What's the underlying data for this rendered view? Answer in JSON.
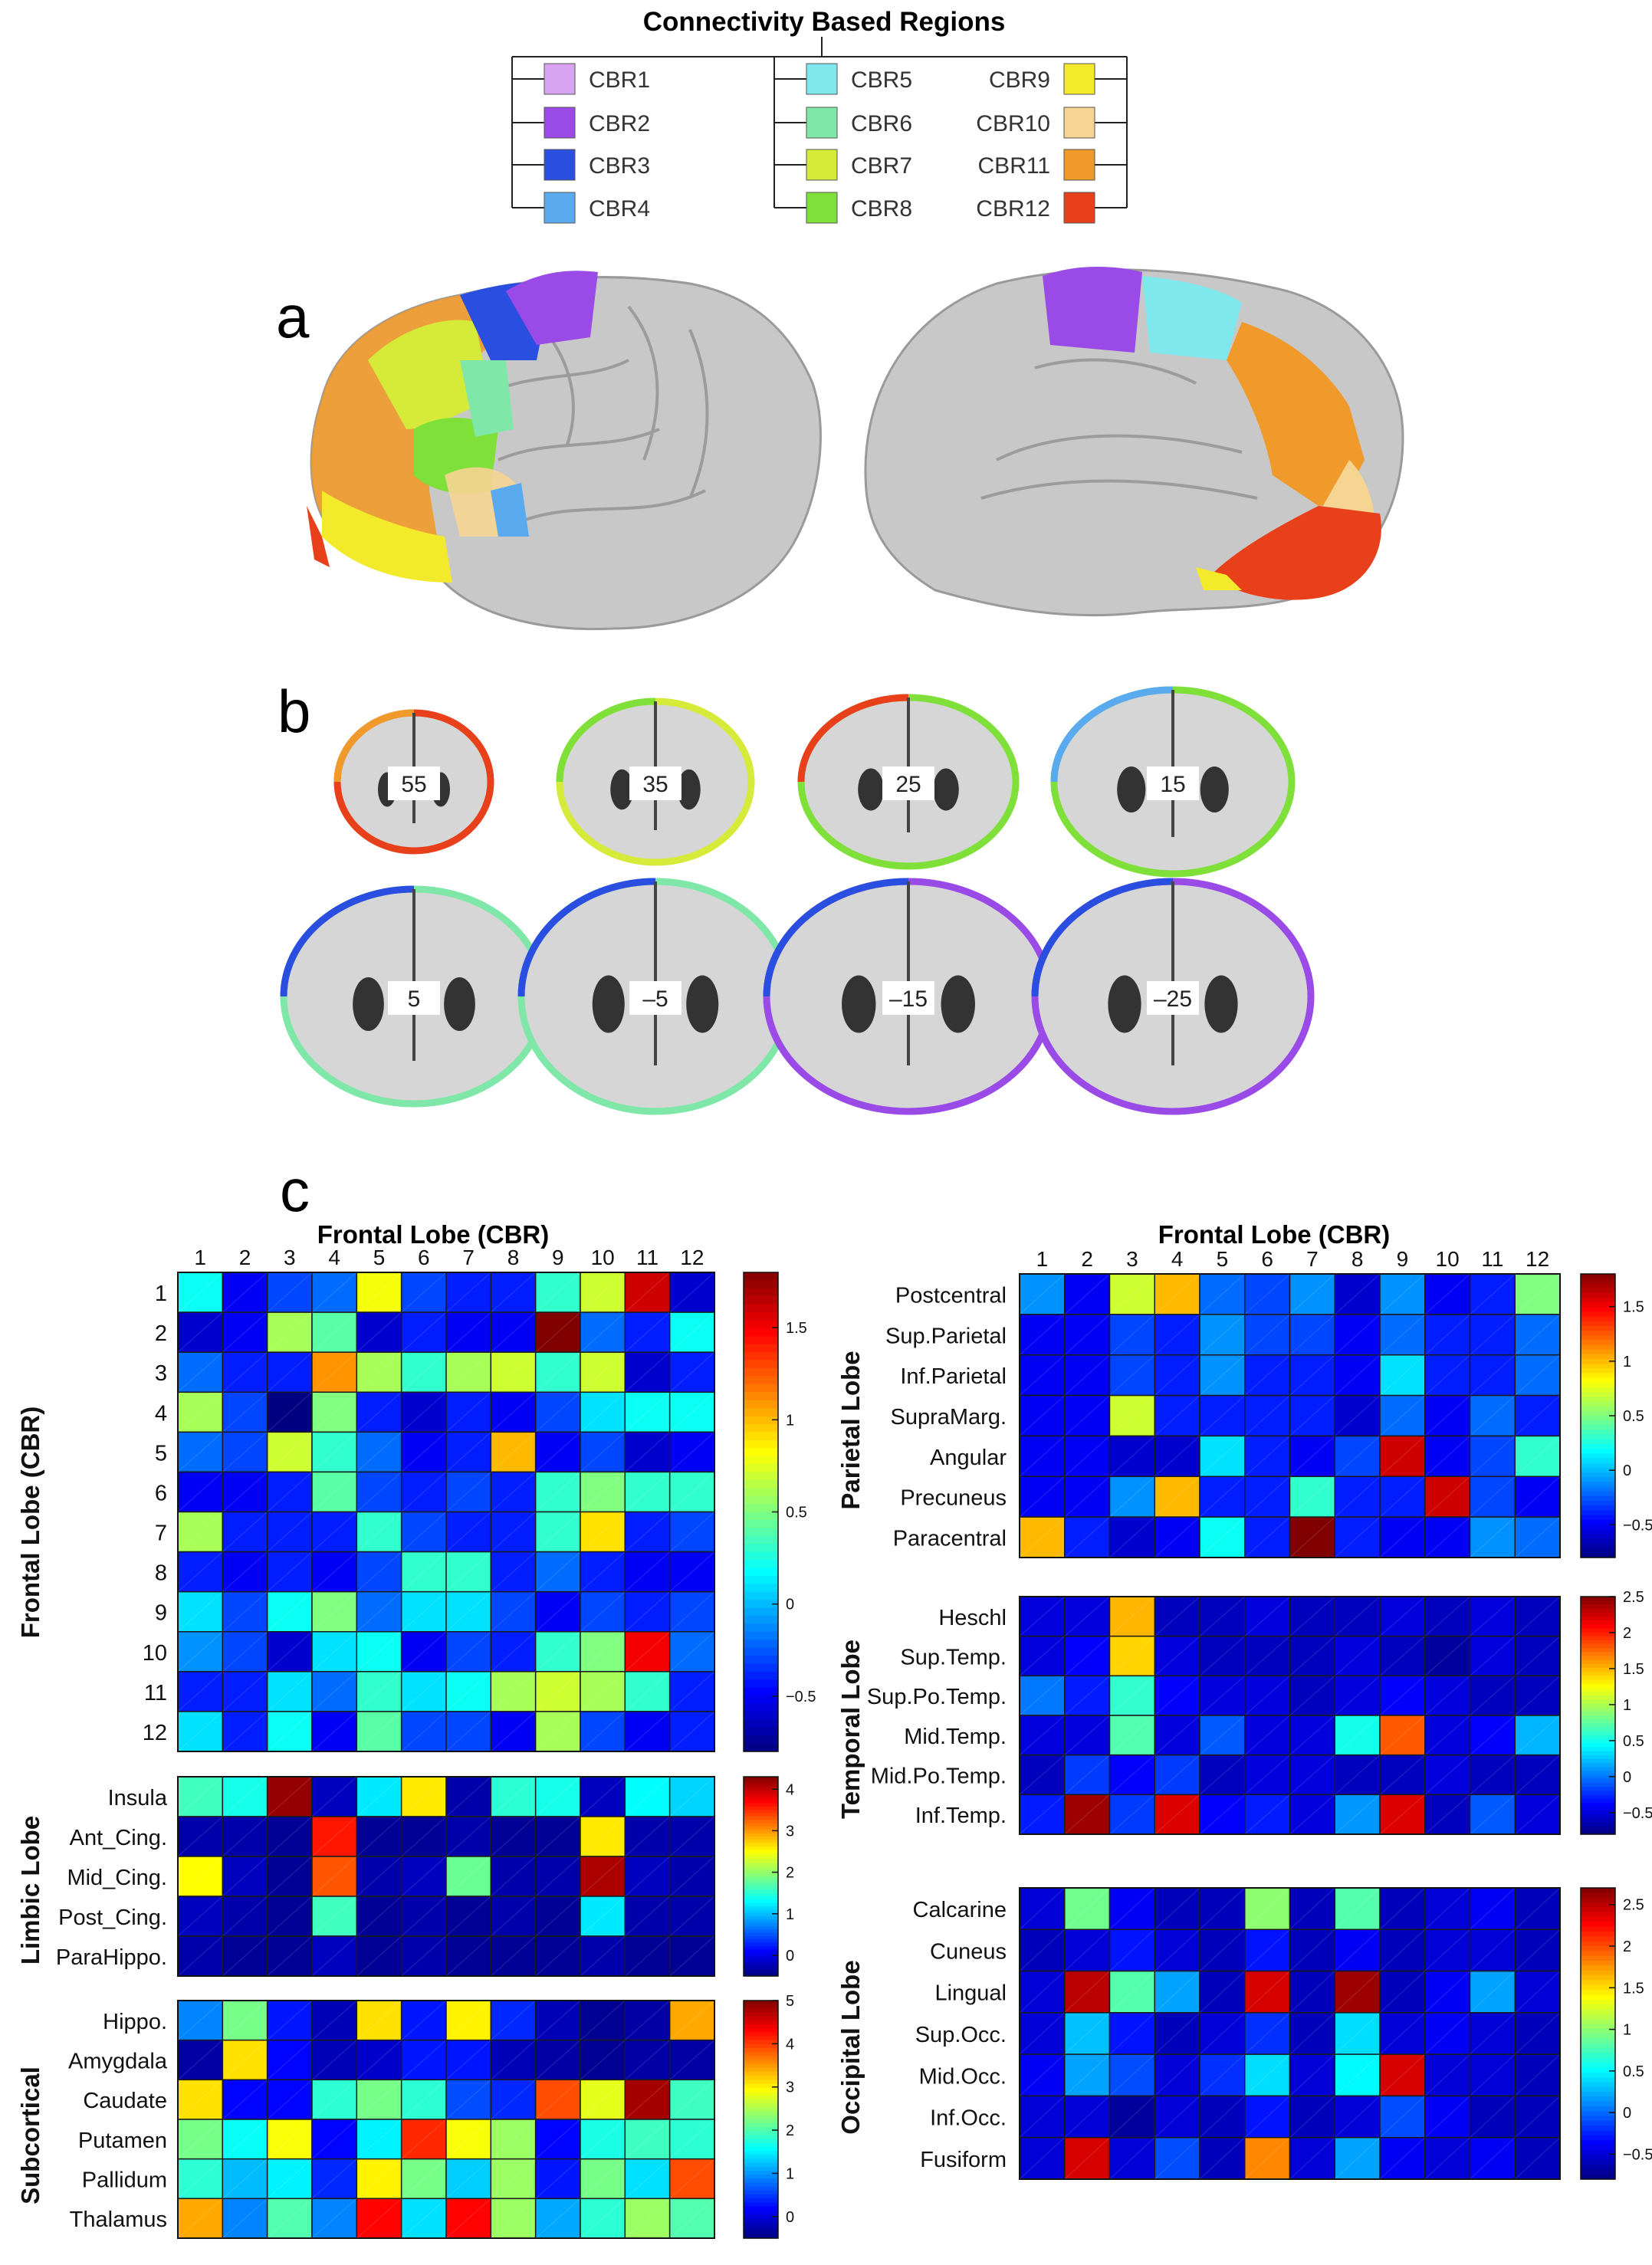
{
  "legend": {
    "title": "Connectivity Based Regions",
    "items": [
      {
        "label": "CBR1",
        "color": "#d8a3f0"
      },
      {
        "label": "CBR2",
        "color": "#9a4ae6"
      },
      {
        "label": "CBR3",
        "color": "#2a4fe0"
      },
      {
        "label": "CBR4",
        "color": "#5aaaf0"
      },
      {
        "label": "CBR5",
        "color": "#7fe8ec"
      },
      {
        "label": "CBR6",
        "color": "#7fe8a8"
      },
      {
        "label": "CBR7",
        "color": "#d6ea3a"
      },
      {
        "label": "CBR8",
        "color": "#7fe03a"
      },
      {
        "label": "CBR9",
        "color": "#f2ea2a"
      },
      {
        "label": "CBR10",
        "color": "#f6d492"
      },
      {
        "label": "CBR11",
        "color": "#ef9a2a"
      },
      {
        "label": "CBR12",
        "color": "#e8401a"
      }
    ]
  },
  "panel_labels": {
    "a": "a",
    "b": "b",
    "c": "c"
  },
  "slices": [
    "55",
    "35",
    "25",
    "15",
    "5",
    "–5",
    "–15",
    "–25"
  ],
  "chart_data": [
    {
      "type": "heatmap",
      "title": "Frontal Lobe (CBR)",
      "ylabel": "Frontal Lobe (CBR)",
      "x": [
        "1",
        "2",
        "3",
        "4",
        "5",
        "6",
        "7",
        "8",
        "9",
        "10",
        "11",
        "12"
      ],
      "y": [
        "1",
        "2",
        "3",
        "4",
        "5",
        "6",
        "7",
        "8",
        "9",
        "10",
        "11",
        "12"
      ],
      "zlim": [
        -0.8,
        1.8
      ],
      "colorbar_ticks": [
        "1.5",
        "1",
        "0.5",
        "0",
        "−0.5"
      ],
      "values": [
        [
          0.2,
          -0.5,
          -0.3,
          -0.2,
          0.8,
          -0.3,
          -0.4,
          -0.4,
          0.3,
          0.7,
          1.6,
          -0.6
        ],
        [
          -0.6,
          -0.5,
          0.6,
          0.4,
          -0.6,
          -0.4,
          -0.5,
          -0.5,
          1.8,
          -0.2,
          -0.4,
          0.2
        ],
        [
          -0.2,
          -0.4,
          -0.4,
          1.1,
          0.6,
          0.3,
          0.6,
          0.7,
          0.3,
          0.7,
          -0.6,
          -0.4
        ],
        [
          0.6,
          -0.3,
          -0.8,
          0.5,
          -0.4,
          -0.6,
          -0.4,
          -0.5,
          -0.3,
          0.1,
          0.2,
          0.2
        ],
        [
          -0.2,
          -0.3,
          0.7,
          0.3,
          -0.2,
          -0.5,
          -0.4,
          1.0,
          -0.5,
          -0.3,
          -0.6,
          -0.5
        ],
        [
          -0.5,
          -0.5,
          -0.4,
          0.4,
          -0.3,
          -0.4,
          -0.3,
          -0.4,
          0.3,
          0.5,
          0.3,
          0.3
        ],
        [
          0.6,
          -0.4,
          -0.4,
          -0.4,
          0.3,
          -0.3,
          -0.4,
          -0.4,
          0.3,
          0.9,
          -0.4,
          -0.3
        ],
        [
          -0.4,
          -0.5,
          -0.4,
          -0.5,
          -0.3,
          0.3,
          0.3,
          -0.4,
          -0.2,
          -0.4,
          -0.5,
          -0.5
        ],
        [
          0.1,
          -0.3,
          0.2,
          0.5,
          -0.2,
          0.1,
          0.1,
          -0.3,
          -0.5,
          -0.3,
          -0.4,
          -0.3
        ],
        [
          -0.1,
          -0.3,
          -0.6,
          0.1,
          0.2,
          -0.5,
          -0.3,
          -0.4,
          0.3,
          0.5,
          1.5,
          -0.2
        ],
        [
          -0.4,
          -0.4,
          0.1,
          -0.2,
          0.3,
          0.1,
          0.2,
          0.6,
          0.7,
          0.6,
          0.3,
          -0.4
        ],
        [
          0.1,
          -0.4,
          0.2,
          -0.5,
          0.4,
          -0.3,
          -0.3,
          -0.5,
          0.6,
          -0.3,
          -0.5,
          -0.4
        ]
      ]
    },
    {
      "type": "heatmap",
      "title": "",
      "ylabel": "Limbic Lobe",
      "x": [
        "1",
        "2",
        "3",
        "4",
        "5",
        "6",
        "7",
        "8",
        "9",
        "10",
        "11",
        "12"
      ],
      "y": [
        "Insula",
        "Ant_Cing.",
        "Mid_Cing.",
        "Post_Cing.",
        "ParaHippo."
      ],
      "zlim": [
        -0.5,
        4.3
      ],
      "colorbar_ticks": [
        "4",
        "3",
        "2",
        "1",
        "0"
      ],
      "values": [
        [
          1.6,
          1.4,
          4.2,
          -0.2,
          1.2,
          2.6,
          -0.3,
          1.5,
          1.4,
          -0.2,
          1.3,
          1.1
        ],
        [
          -0.3,
          -0.3,
          -0.4,
          3.6,
          -0.4,
          -0.4,
          -0.3,
          -0.4,
          -0.4,
          2.6,
          -0.3,
          -0.3
        ],
        [
          2.5,
          -0.2,
          -0.4,
          3.3,
          -0.3,
          -0.2,
          1.8,
          -0.3,
          -0.3,
          4.1,
          -0.2,
          -0.3
        ],
        [
          -0.2,
          -0.3,
          -0.4,
          1.6,
          -0.4,
          -0.3,
          -0.4,
          -0.3,
          -0.4,
          1.2,
          -0.3,
          -0.3
        ],
        [
          -0.3,
          -0.4,
          -0.4,
          -0.2,
          -0.4,
          -0.3,
          -0.4,
          -0.4,
          -0.4,
          -0.3,
          -0.4,
          -0.4
        ]
      ]
    },
    {
      "type": "heatmap",
      "title": "",
      "ylabel": "Subcortical",
      "x": [
        "1",
        "2",
        "3",
        "4",
        "5",
        "6",
        "7",
        "8",
        "9",
        "10",
        "11",
        "12"
      ],
      "y": [
        "Hippo.",
        "Amygdala",
        "Caudate",
        "Putamen",
        "Pallidum",
        "Thalamus"
      ],
      "zlim": [
        -0.5,
        5
      ],
      "colorbar_ticks": [
        "5",
        "4",
        "3",
        "2",
        "1",
        "0"
      ],
      "values": [
        [
          0.9,
          2.2,
          0.3,
          -0.2,
          3.1,
          0.3,
          3.0,
          0.4,
          -0.2,
          -0.4,
          -0.3,
          3.4
        ],
        [
          -0.3,
          3.1,
          0.2,
          -0.2,
          -0.1,
          0.3,
          0.3,
          -0.2,
          -0.3,
          -0.4,
          -0.3,
          -0.3
        ],
        [
          3.1,
          0.2,
          0.2,
          1.8,
          2.2,
          1.8,
          0.6,
          0.4,
          3.9,
          2.8,
          4.8,
          1.9
        ],
        [
          2.2,
          1.6,
          2.9,
          0.2,
          1.5,
          4.1,
          2.9,
          2.4,
          0.2,
          1.7,
          1.9,
          1.8
        ],
        [
          1.8,
          1.2,
          1.5,
          0.4,
          3.0,
          2.2,
          1.3,
          2.4,
          0.3,
          2.2,
          1.4,
          3.9
        ],
        [
          3.4,
          0.9,
          2.0,
          0.9,
          4.3,
          1.4,
          4.3,
          2.4,
          1.1,
          1.8,
          2.4,
          2.0
        ]
      ]
    },
    {
      "type": "heatmap",
      "title": "Frontal Lobe (CBR)",
      "ylabel": "Parietal Lobe",
      "x": [
        "1",
        "2",
        "3",
        "4",
        "5",
        "6",
        "7",
        "8",
        "9",
        "10",
        "11",
        "12"
      ],
      "y": [
        "Postcentral",
        "Sup.Parietal",
        "Inf.Parietal",
        "SupraMarg.",
        "Angular",
        "Precuneus",
        "Paracentral"
      ],
      "zlim": [
        -0.8,
        1.8
      ],
      "colorbar_ticks": [
        "1.5",
        "1",
        "0.5",
        "0",
        "−0.5"
      ],
      "values": [
        [
          -0.1,
          -0.5,
          0.7,
          1.0,
          -0.2,
          -0.3,
          -0.1,
          -0.6,
          -0.1,
          -0.5,
          -0.4,
          0.5
        ],
        [
          -0.5,
          -0.5,
          -0.3,
          -0.4,
          -0.1,
          -0.3,
          -0.3,
          -0.5,
          -0.2,
          -0.4,
          -0.4,
          -0.2
        ],
        [
          -0.5,
          -0.5,
          -0.3,
          -0.4,
          -0.1,
          -0.4,
          -0.4,
          -0.5,
          0.1,
          -0.4,
          -0.4,
          -0.2
        ],
        [
          -0.5,
          -0.5,
          0.7,
          -0.4,
          -0.4,
          -0.4,
          -0.4,
          -0.6,
          -0.2,
          -0.5,
          -0.2,
          -0.4
        ],
        [
          -0.5,
          -0.5,
          -0.6,
          -0.6,
          0.1,
          -0.4,
          -0.5,
          -0.3,
          1.6,
          -0.5,
          -0.3,
          0.3
        ],
        [
          -0.5,
          -0.5,
          -0.1,
          1.0,
          -0.4,
          -0.4,
          0.3,
          -0.4,
          -0.4,
          1.6,
          -0.3,
          -0.5
        ],
        [
          1.0,
          -0.4,
          -0.6,
          -0.5,
          0.2,
          -0.4,
          1.8,
          -0.4,
          -0.5,
          -0.5,
          -0.1,
          -0.2
        ]
      ]
    },
    {
      "type": "heatmap",
      "title": "",
      "ylabel": "Temporal Lobe",
      "x": [
        "1",
        "2",
        "3",
        "4",
        "5",
        "6",
        "7",
        "8",
        "9",
        "10",
        "11",
        "12"
      ],
      "y": [
        "Heschl",
        "Sup.Temp.",
        "Sup.Po.Temp.",
        "Mid.Temp.",
        "Mid.Po.Temp.",
        "Inf.Temp."
      ],
      "zlim": [
        -0.8,
        2.5
      ],
      "colorbar_ticks": [
        "2.5",
        "2",
        "1.5",
        "1",
        "0.5",
        "0",
        "−0.5"
      ],
      "values": [
        [
          -0.5,
          -0.5,
          1.5,
          -0.6,
          -0.6,
          -0.5,
          -0.6,
          -0.6,
          -0.5,
          -0.6,
          -0.5,
          -0.6
        ],
        [
          -0.5,
          -0.4,
          1.4,
          -0.5,
          -0.6,
          -0.6,
          -0.6,
          -0.5,
          -0.6,
          -0.7,
          -0.5,
          -0.6
        ],
        [
          0.0,
          -0.3,
          0.6,
          -0.4,
          -0.5,
          -0.5,
          -0.6,
          -0.5,
          -0.4,
          -0.5,
          -0.6,
          -0.6
        ],
        [
          -0.5,
          -0.5,
          0.7,
          -0.5,
          -0.1,
          -0.5,
          -0.5,
          0.5,
          1.8,
          -0.5,
          -0.4,
          0.2
        ],
        [
          -0.6,
          -0.2,
          -0.4,
          -0.2,
          -0.6,
          -0.5,
          -0.5,
          -0.6,
          -0.6,
          -0.5,
          -0.6,
          -0.6
        ],
        [
          -0.3,
          2.4,
          -0.2,
          2.2,
          -0.4,
          -0.3,
          -0.5,
          0.1,
          2.2,
          -0.6,
          -0.1,
          -0.5
        ]
      ]
    },
    {
      "type": "heatmap",
      "title": "",
      "ylabel": "Occipital Lobe",
      "x": [
        "1",
        "2",
        "3",
        "4",
        "5",
        "6",
        "7",
        "8",
        "9",
        "10",
        "11",
        "12"
      ],
      "y": [
        "Calcarine",
        "Cuneus",
        "Lingual",
        "Sup.Occ.",
        "Mid.Occ.",
        "Inf.Occ.",
        "Fusiform"
      ],
      "zlim": [
        -0.8,
        2.7
      ],
      "colorbar_ticks": [
        "2.5",
        "2",
        "1.5",
        "1",
        "0.5",
        "0",
        "−0.5"
      ],
      "values": [
        [
          -0.5,
          0.9,
          -0.4,
          -0.6,
          -0.6,
          1.0,
          -0.6,
          0.8,
          -0.6,
          -0.5,
          -0.4,
          -0.6
        ],
        [
          -0.6,
          -0.5,
          -0.3,
          -0.5,
          -0.6,
          -0.3,
          -0.6,
          -0.4,
          -0.6,
          -0.5,
          -0.5,
          -0.6
        ],
        [
          -0.5,
          2.5,
          0.8,
          0.2,
          -0.6,
          2.4,
          -0.6,
          2.6,
          -0.6,
          -0.4,
          0.2,
          -0.5
        ],
        [
          -0.5,
          0.3,
          -0.3,
          -0.6,
          -0.5,
          -0.2,
          -0.6,
          0.4,
          -0.5,
          -0.4,
          -0.5,
          -0.6
        ],
        [
          -0.4,
          0.2,
          -0.1,
          -0.5,
          -0.2,
          0.4,
          -0.5,
          0.5,
          2.4,
          -0.5,
          -0.5,
          -0.6
        ],
        [
          -0.5,
          -0.5,
          -0.7,
          -0.5,
          -0.6,
          -0.3,
          -0.6,
          -0.5,
          -0.1,
          -0.4,
          -0.6,
          -0.6
        ],
        [
          -0.5,
          2.4,
          -0.5,
          -0.1,
          -0.6,
          1.8,
          -0.5,
          0.2,
          -0.4,
          -0.5,
          -0.4,
          -0.6
        ]
      ]
    }
  ]
}
